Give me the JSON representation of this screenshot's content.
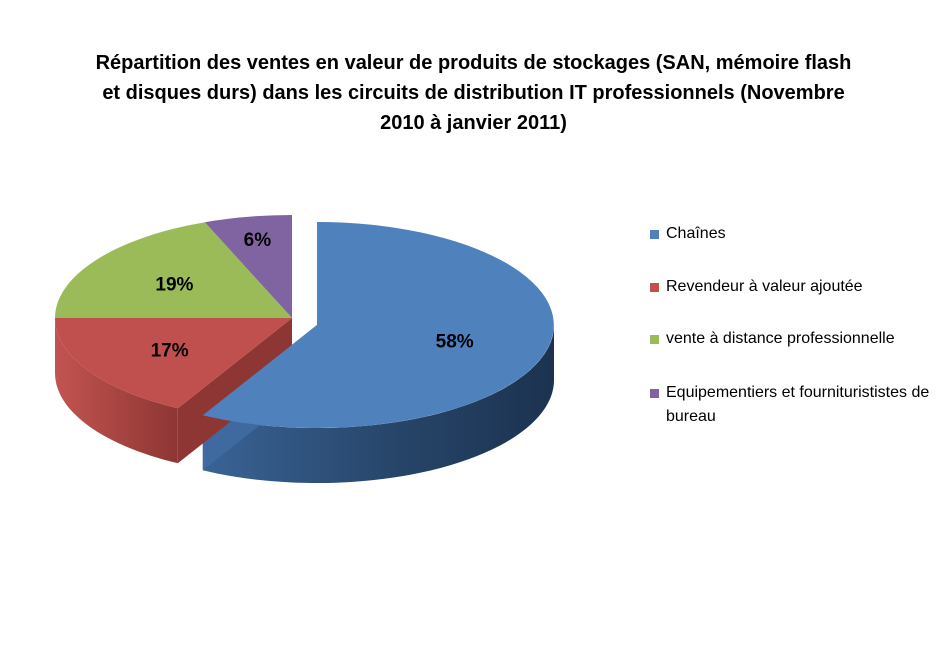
{
  "chart_data": {
    "type": "pie",
    "title": "Répartition des ventes en valeur de produits de stockages (SAN, mémoire flash et disques durs) dans les circuits de distribution IT professionnels (Novembre 2010 à janvier 2011)",
    "title_lines": [
      "Répartition des ventes en valeur de produits de stockages (SAN, mémoire flash",
      "et disques durs) dans les circuits de distribution IT professionnels (Novembre",
      "2010 à janvier 2011)"
    ],
    "three_d": true,
    "legend_position": "right",
    "categories": [
      "Chaînes",
      "Revendeur à valeur ajoutée",
      "vente à distance professionnelle",
      "Equipementiers et fourniturististes de bureau"
    ],
    "legend_lines": [
      [
        "Chaînes"
      ],
      [
        "Revendeur à valeur ajoutée"
      ],
      [
        "vente à distance professionnelle"
      ],
      [
        "Equipementiers et fourniturististes de",
        "bureau"
      ]
    ],
    "values": [
      58,
      17,
      19,
      6
    ],
    "data_labels": [
      "58%",
      "17%",
      "19%",
      "6%"
    ],
    "colors": [
      "#4F81BD",
      "#C0504D",
      "#9BBB59",
      "#8064A2"
    ]
  }
}
